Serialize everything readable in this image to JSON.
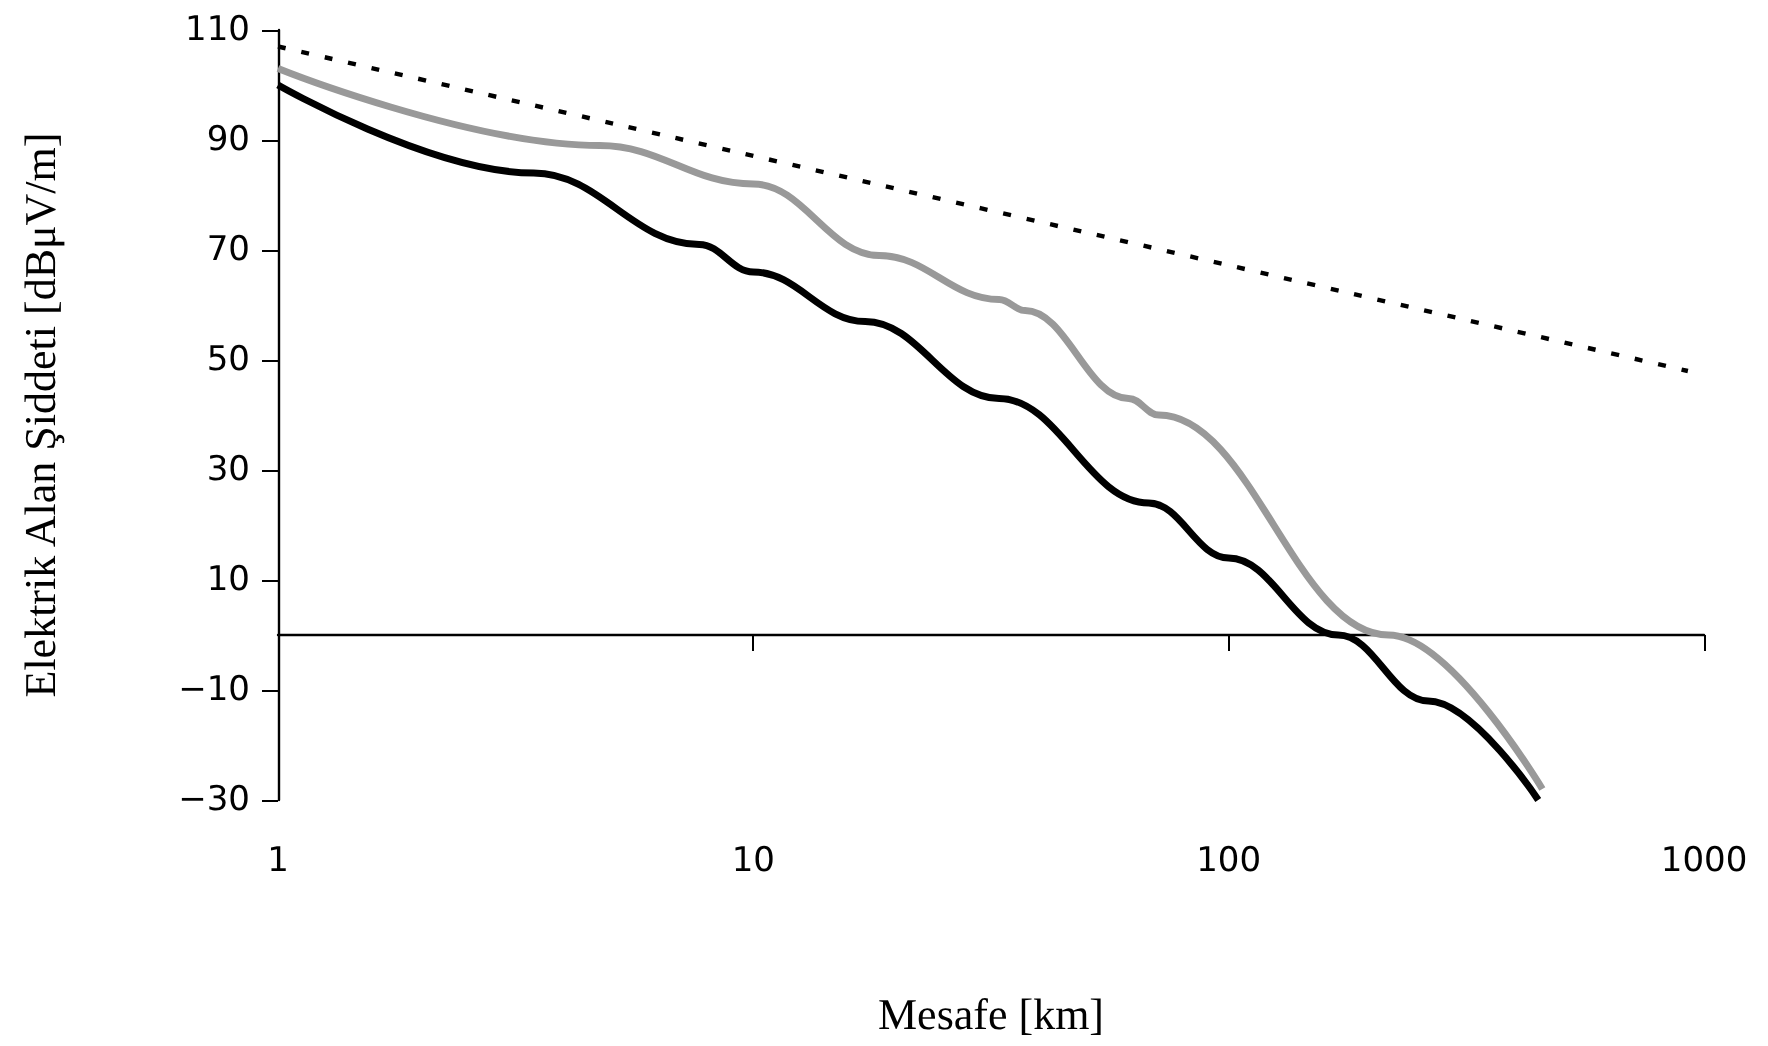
{
  "chart_data": {
    "type": "line",
    "xlabel": "Mesafe [km]",
    "ylabel": "Elektrik Alan Şiddeti [dBμV/m]",
    "log": "x",
    "grid": false,
    "marker": "none",
    "xlim": [
      1,
      1000
    ],
    "xticks": [
      1,
      10,
      100,
      1000
    ],
    "ylim": [
      -30,
      110
    ],
    "yticks": [
      {
        "value": -30,
        "label": "−30"
      },
      {
        "value": -10,
        "label": "−10"
      },
      10,
      30,
      50,
      70,
      90,
      110
    ],
    "series": [
      {
        "color": "#000000",
        "line_style": "dotted",
        "x": [
          1,
          925
        ],
        "values": [
          107,
          48
        ]
      },
      {
        "color": "#999999",
        "line_style": "solid",
        "x": [
          1,
          4.75,
          10,
          18.4,
          32.9,
          37.3,
          61.6,
          71.3,
          217,
          457
        ],
        "values": [
          103,
          89,
          82,
          69,
          61,
          59,
          43,
          40,
          0,
          -28
        ]
      },
      {
        "color": "#000000",
        "line_style": "solid",
        "x": [
          1,
          3.45,
          7.7,
          10,
          17.2,
          32.9,
          67.9,
          100,
          170,
          263,
          448
        ],
        "values": [
          100,
          84,
          71,
          66,
          57,
          43,
          24,
          14,
          0,
          -12,
          -30
        ]
      }
    ]
  }
}
